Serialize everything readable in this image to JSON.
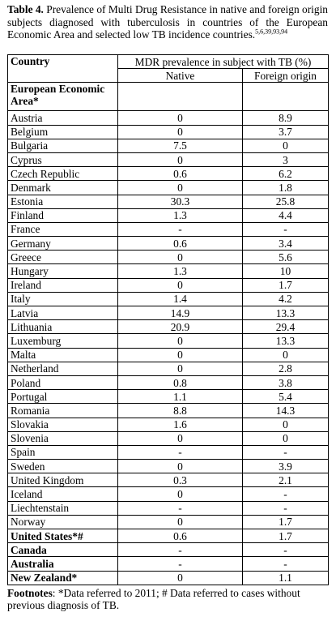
{
  "caption": {
    "label": "Table 4.",
    "text": "Prevalence of Multi Drug Resistance in native and foreign origin subjects diagnosed with tuberculosis in countries of the European Economic Area and selected low TB incidence countries.",
    "refs": "5,6,39,93,94"
  },
  "table": {
    "col_country": "Country",
    "col_group": "MDR prevalence in subject with TB (%)",
    "col_native": "Native",
    "col_foreign": "Foreign origin",
    "section_eea": "European Economic Area*",
    "rows": [
      {
        "country": "Austria",
        "native": "0",
        "foreign": "8.9",
        "bold": false
      },
      {
        "country": "Belgium",
        "native": "0",
        "foreign": "3.7",
        "bold": false
      },
      {
        "country": "Bulgaria",
        "native": "7.5",
        "foreign": "0",
        "bold": false
      },
      {
        "country": "Cyprus",
        "native": "0",
        "foreign": "3",
        "bold": false
      },
      {
        "country": "Czech Republic",
        "native": "0.6",
        "foreign": "6.2",
        "bold": false
      },
      {
        "country": "Denmark",
        "native": "0",
        "foreign": "1.8",
        "bold": false
      },
      {
        "country": "Estonia",
        "native": "30.3",
        "foreign": "25.8",
        "bold": false
      },
      {
        "country": "Finland",
        "native": "1.3",
        "foreign": "4.4",
        "bold": false
      },
      {
        "country": "France",
        "native": "-",
        "foreign": "-",
        "bold": false
      },
      {
        "country": "Germany",
        "native": "0.6",
        "foreign": "3.4",
        "bold": false
      },
      {
        "country": "Greece",
        "native": "0",
        "foreign": "5.6",
        "bold": false
      },
      {
        "country": "Hungary",
        "native": "1.3",
        "foreign": "10",
        "bold": false
      },
      {
        "country": "Ireland",
        "native": "0",
        "foreign": "1.7",
        "bold": false
      },
      {
        "country": "Italy",
        "native": "1.4",
        "foreign": "4.2",
        "bold": false
      },
      {
        "country": "Latvia",
        "native": "14.9",
        "foreign": "13.3",
        "bold": false
      },
      {
        "country": "Lithuania",
        "native": "20.9",
        "foreign": "29.4",
        "bold": false
      },
      {
        "country": "Luxemburg",
        "native": "0",
        "foreign": "13.3",
        "bold": false
      },
      {
        "country": "Malta",
        "native": "0",
        "foreign": "0",
        "bold": false
      },
      {
        "country": "Netherland",
        "native": "0",
        "foreign": "2.8",
        "bold": false
      },
      {
        "country": "Poland",
        "native": "0.8",
        "foreign": "3.8",
        "bold": false
      },
      {
        "country": "Portugal",
        "native": "1.1",
        "foreign": "5.4",
        "bold": false
      },
      {
        "country": "Romania",
        "native": "8.8",
        "foreign": "14.3",
        "bold": false
      },
      {
        "country": "Slovakia",
        "native": "1.6",
        "foreign": "0",
        "bold": false
      },
      {
        "country": "Slovenia",
        "native": "0",
        "foreign": "0",
        "bold": false
      },
      {
        "country": "Spain",
        "native": "-",
        "foreign": "-",
        "bold": false
      },
      {
        "country": "Sweden",
        "native": "0",
        "foreign": "3.9",
        "bold": false
      },
      {
        "country": "United Kingdom",
        "native": "0.3",
        "foreign": "2.1",
        "bold": false
      },
      {
        "country": "Iceland",
        "native": "0",
        "foreign": "-",
        "bold": false
      },
      {
        "country": "Liechtenstain",
        "native": "-",
        "foreign": "-",
        "bold": false
      },
      {
        "country": "Norway",
        "native": "0",
        "foreign": "1.7",
        "bold": false
      },
      {
        "country": "United States*#",
        "native": "0.6",
        "foreign": "1.7",
        "bold": true
      },
      {
        "country": "Canada",
        "native": "-",
        "foreign": "-",
        "bold": true
      },
      {
        "country": "Australia",
        "native": "-",
        "foreign": "-",
        "bold": true
      },
      {
        "country": "New Zealand*",
        "native": "0",
        "foreign": "1.1",
        "bold": true
      }
    ]
  },
  "footnotes": {
    "label": "Footnotes",
    "text": ": *Data referred to 2011; # Data referred to cases without previous diagnosis of TB."
  }
}
